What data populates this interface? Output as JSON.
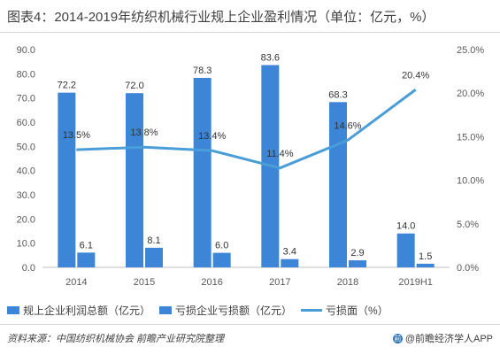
{
  "title": "图表4：2014-2019年纺织机械行业规上企业盈利情况（单位：亿元，%）",
  "colors": {
    "bar": "#3d85d6",
    "line": "#4a9ed8",
    "axis": "#bfbfbf"
  },
  "chart_data": {
    "type": "bar",
    "categories": [
      "2014",
      "2015",
      "2016",
      "2017",
      "2018",
      "2019H1"
    ],
    "series": [
      {
        "name": "规上企业利润总额（亿元）",
        "axis": "left",
        "type": "bar",
        "values": [
          72.2,
          72.0,
          78.3,
          83.6,
          68.3,
          14.0
        ],
        "labels": [
          "72.2",
          "72.0",
          "78.3",
          "83.6",
          "68.3",
          "14.0"
        ]
      },
      {
        "name": "亏损企业亏损额（亿元）",
        "axis": "left",
        "type": "bar",
        "values": [
          6.1,
          8.1,
          6.0,
          3.4,
          2.9,
          1.5
        ],
        "labels": [
          "6.1",
          "8.1",
          "6.0",
          "3.4",
          "2.9",
          "1.5"
        ]
      },
      {
        "name": "亏损面（%）",
        "axis": "right",
        "type": "line",
        "values": [
          13.5,
          13.8,
          13.4,
          11.4,
          14.6,
          20.4
        ],
        "labels": [
          "13.5%",
          "13.8%",
          "13.4%",
          "11.4%",
          "14.6%",
          "20.4%"
        ]
      }
    ],
    "ylim_left": [
      0,
      90
    ],
    "yticks_left": [
      "0.0",
      "10.0",
      "20.0",
      "30.0",
      "40.0",
      "50.0",
      "60.0",
      "70.0",
      "80.0",
      "90.0"
    ],
    "ylim_right": [
      0,
      25
    ],
    "yticks_right": [
      "0.0%",
      "5.0%",
      "10.0%",
      "15.0%",
      "20.0%",
      "25.0%"
    ],
    "grid": false,
    "legend_position": "bottom"
  },
  "legend": [
    {
      "label": "规上企业利润总额（亿元）"
    },
    {
      "label": "亏损企业亏损额（亿元）"
    },
    {
      "label": "亏损面（%）"
    }
  ],
  "source": "资料来源：中国纺织机械协会 前瞻产业研究院整理",
  "brand": "@前瞻经济学人APP"
}
